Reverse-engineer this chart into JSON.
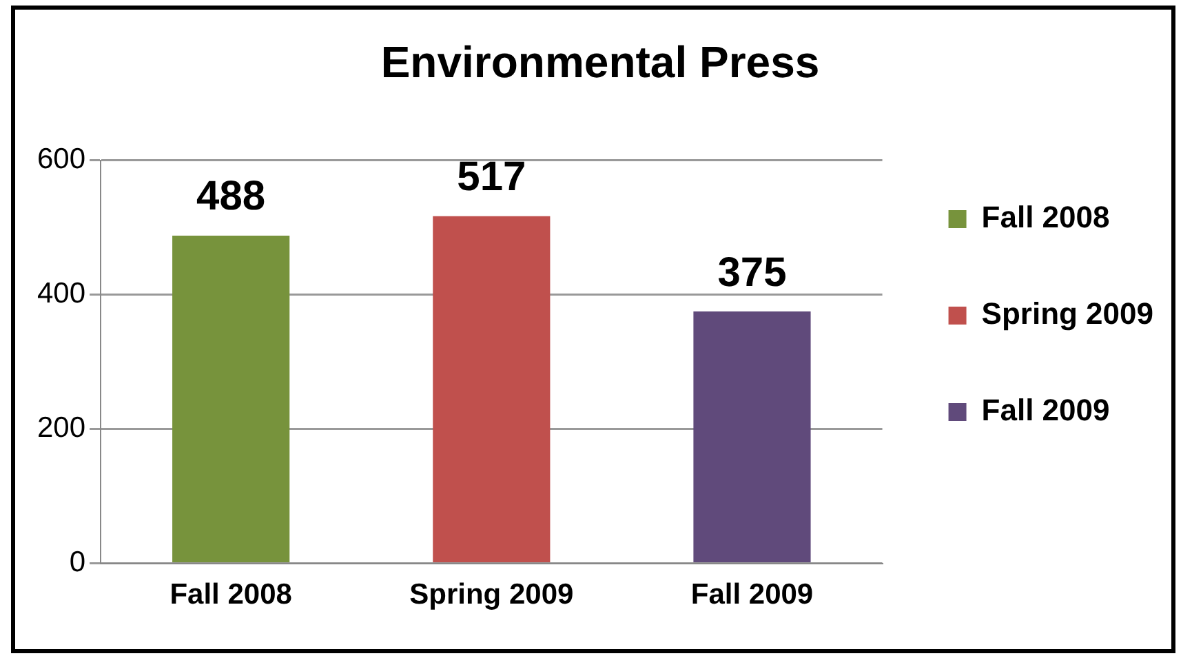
{
  "chart_data": {
    "type": "bar",
    "title": "Environmental Press",
    "categories": [
      "Fall 2008",
      "Spring 2009",
      "Fall 2009"
    ],
    "series": [
      {
        "name": "Fall 2008",
        "color": "#77933c",
        "values": [
          488,
          null,
          null
        ]
      },
      {
        "name": "Spring 2009",
        "color": "#c0504d",
        "values": [
          null,
          517,
          null
        ]
      },
      {
        "name": "Fall 2009",
        "color": "#604a7b",
        "values": [
          null,
          null,
          375
        ]
      }
    ],
    "ylim": [
      0,
      600
    ],
    "yticks": [
      0,
      200,
      400,
      600
    ],
    "grid": "y",
    "legend": "right",
    "data_labels": true
  }
}
